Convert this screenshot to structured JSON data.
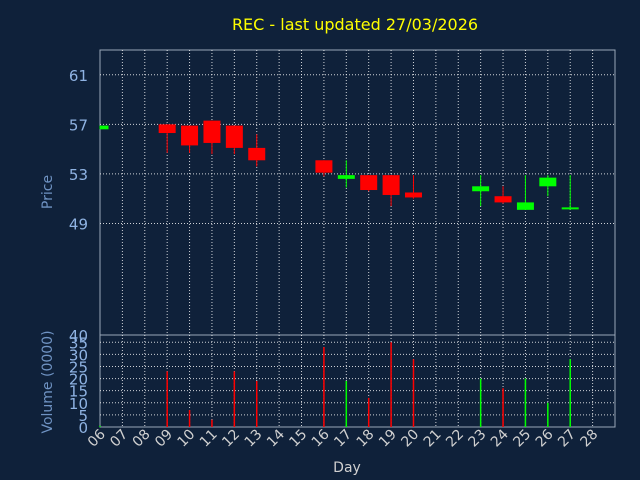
{
  "chart_data": [
    {
      "type": "candlestick",
      "title": "REC - last updated 27/03/2026",
      "ylabel": "Price",
      "ylim": [
        40,
        63
      ],
      "yticks": [
        40,
        49,
        53,
        57,
        61
      ],
      "grid": true,
      "colors": {
        "up": "#00ff00",
        "down": "#ff0000",
        "background": "#0f213a",
        "grid": "#ffffff"
      },
      "x_ticks": [
        "06",
        "07",
        "08",
        "09",
        "10",
        "11",
        "12",
        "13",
        "14",
        "15",
        "16",
        "17",
        "18",
        "19",
        "20",
        "21",
        "22",
        "23",
        "24",
        "25",
        "26",
        "27",
        "28"
      ],
      "candles": [
        {
          "day": "06",
          "open": 56.6,
          "close": 56.9,
          "high": 56.9,
          "low": 56.6
        },
        {
          "day": "09",
          "open": 57.0,
          "close": 56.3,
          "high": 57.0,
          "low": 54.7
        },
        {
          "day": "10",
          "open": 56.9,
          "close": 55.3,
          "high": 56.9,
          "low": 54.7
        },
        {
          "day": "11",
          "open": 57.3,
          "close": 55.5,
          "high": 57.3,
          "low": 54.6
        },
        {
          "day": "12",
          "open": 56.9,
          "close": 55.1,
          "high": 56.9,
          "low": 54.6
        },
        {
          "day": "13",
          "open": 55.1,
          "close": 54.1,
          "high": 56.2,
          "low": 53.6
        },
        {
          "day": "16",
          "open": 54.1,
          "close": 53.1,
          "high": 54.1,
          "low": 52.8
        },
        {
          "day": "17",
          "open": 52.6,
          "close": 52.9,
          "high": 54.1,
          "low": 51.9
        },
        {
          "day": "18",
          "open": 52.9,
          "close": 51.7,
          "high": 52.9,
          "low": 51.6
        },
        {
          "day": "19",
          "open": 52.9,
          "close": 51.3,
          "high": 52.9,
          "low": 50.4
        },
        {
          "day": "20",
          "open": 51.5,
          "close": 51.1,
          "high": 52.9,
          "low": 51.0
        },
        {
          "day": "23",
          "open": 51.6,
          "close": 52.0,
          "high": 52.9,
          "low": 50.4
        },
        {
          "day": "24",
          "open": 51.2,
          "close": 50.7,
          "high": 52.0,
          "low": 50.6
        },
        {
          "day": "25",
          "open": 50.1,
          "close": 50.7,
          "high": 52.9,
          "low": 50.1
        },
        {
          "day": "26",
          "open": 52.0,
          "close": 52.7,
          "high": 52.9,
          "low": 51.2
        },
        {
          "day": "27",
          "open": 50.2,
          "close": 50.3,
          "high": 52.9,
          "low": 50.1
        }
      ]
    },
    {
      "type": "bar",
      "ylabel": "Volume (0000)",
      "xlabel": "Day",
      "ylim": [
        0,
        38
      ],
      "yticks": [
        0,
        5,
        10,
        15,
        20,
        25,
        30,
        35
      ],
      "x_ticks": [
        "06",
        "07",
        "08",
        "09",
        "10",
        "11",
        "12",
        "13",
        "14",
        "15",
        "16",
        "17",
        "18",
        "19",
        "20",
        "21",
        "22",
        "23",
        "24",
        "25",
        "26",
        "27",
        "28"
      ],
      "bars": [
        {
          "day": "06",
          "value": 0.5,
          "dir": "up"
        },
        {
          "day": "09",
          "value": 23,
          "dir": "down"
        },
        {
          "day": "10",
          "value": 7,
          "dir": "down"
        },
        {
          "day": "11",
          "value": 3,
          "dir": "down"
        },
        {
          "day": "12",
          "value": 23,
          "dir": "down"
        },
        {
          "day": "13",
          "value": 19,
          "dir": "down"
        },
        {
          "day": "16",
          "value": 33,
          "dir": "down"
        },
        {
          "day": "17",
          "value": 19,
          "dir": "up"
        },
        {
          "day": "18",
          "value": 12,
          "dir": "down"
        },
        {
          "day": "19",
          "value": 35,
          "dir": "down"
        },
        {
          "day": "20",
          "value": 28,
          "dir": "down"
        },
        {
          "day": "23",
          "value": 20,
          "dir": "up"
        },
        {
          "day": "24",
          "value": 16,
          "dir": "down"
        },
        {
          "day": "25",
          "value": 20,
          "dir": "up"
        },
        {
          "day": "26",
          "value": 10,
          "dir": "up"
        },
        {
          "day": "27",
          "value": 28,
          "dir": "up"
        }
      ]
    }
  ]
}
